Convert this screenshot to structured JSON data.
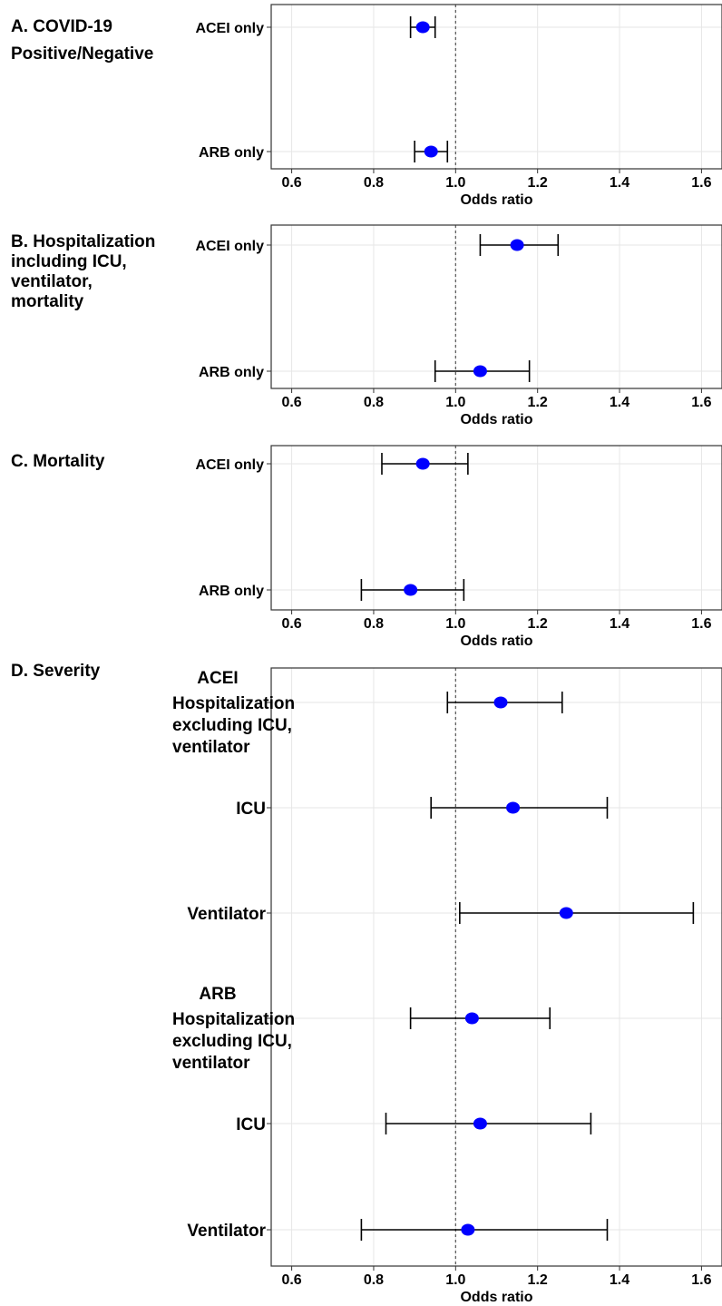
{
  "chart_data": [
    {
      "type": "scatter",
      "subtype": "forest-plot",
      "panel_title": [
        "A. COVID-19",
        "Positive/Negative"
      ],
      "xlabel": "Odds ratio",
      "xlim": [
        0.55,
        1.65
      ],
      "xticks": [
        0.6,
        0.8,
        1.0,
        1.2,
        1.4,
        1.6
      ],
      "xtick_labels": [
        "0.6",
        "0.8",
        "1.0",
        "1.2",
        "1.4",
        "1.6"
      ],
      "reference_line": 1.0,
      "rows": [
        {
          "label": [
            "ACEI only"
          ],
          "estimate": 0.92,
          "lower": 0.89,
          "upper": 0.95
        },
        {
          "label": [
            "ARB only"
          ],
          "estimate": 0.94,
          "lower": 0.9,
          "upper": 0.98
        }
      ]
    },
    {
      "type": "scatter",
      "subtype": "forest-plot",
      "panel_title": [
        "B. Hospitalization",
        "including ICU,",
        "ventilator,",
        "mortality"
      ],
      "xlabel": "Odds ratio",
      "xlim": [
        0.55,
        1.65
      ],
      "xticks": [
        0.6,
        0.8,
        1.0,
        1.2,
        1.4,
        1.6
      ],
      "xtick_labels": [
        "0.6",
        "0.8",
        "1.0",
        "1.2",
        "1.4",
        "1.6"
      ],
      "reference_line": 1.0,
      "rows": [
        {
          "label": [
            "ACEI only"
          ],
          "estimate": 1.15,
          "lower": 1.06,
          "upper": 1.25
        },
        {
          "label": [
            "ARB only"
          ],
          "estimate": 1.06,
          "lower": 0.95,
          "upper": 1.18
        }
      ]
    },
    {
      "type": "scatter",
      "subtype": "forest-plot",
      "panel_title": [
        "C. Mortality"
      ],
      "xlabel": "Odds ratio",
      "xlim": [
        0.55,
        1.65
      ],
      "xticks": [
        0.6,
        0.8,
        1.0,
        1.2,
        1.4,
        1.6
      ],
      "xtick_labels": [
        "0.6",
        "0.8",
        "1.0",
        "1.2",
        "1.4",
        "1.6"
      ],
      "reference_line": 1.0,
      "rows": [
        {
          "label": [
            "ACEI only"
          ],
          "estimate": 0.92,
          "lower": 0.82,
          "upper": 1.03
        },
        {
          "label": [
            "ARB only"
          ],
          "estimate": 0.89,
          "lower": 0.77,
          "upper": 1.02
        }
      ]
    },
    {
      "type": "scatter",
      "subtype": "forest-plot",
      "panel_title": [
        "D. Severity"
      ],
      "xlabel": "Odds ratio",
      "xlim": [
        0.55,
        1.65
      ],
      "xticks": [
        0.6,
        0.8,
        1.0,
        1.2,
        1.4,
        1.6
      ],
      "xtick_labels": [
        "0.6",
        "0.8",
        "1.0",
        "1.2",
        "1.4",
        "1.6"
      ],
      "reference_line": 1.0,
      "rows": [
        {
          "label": [
            "ACEI",
            "Hospitalization",
            "excluding ICU,",
            "ventilator"
          ],
          "estimate": 1.11,
          "lower": 0.98,
          "upper": 1.26
        },
        {
          "label": [
            "ICU"
          ],
          "estimate": 1.14,
          "lower": 0.94,
          "upper": 1.37
        },
        {
          "label": [
            "Ventilator"
          ],
          "estimate": 1.27,
          "lower": 1.01,
          "upper": 1.58
        },
        {
          "label": [
            "ARB",
            "Hospitalization",
            "excluding ICU,",
            "ventilator"
          ],
          "estimate": 1.04,
          "lower": 0.89,
          "upper": 1.23
        },
        {
          "label": [
            "ICU"
          ],
          "estimate": 1.06,
          "lower": 0.83,
          "upper": 1.33
        },
        {
          "label": [
            "Ventilator"
          ],
          "estimate": 1.03,
          "lower": 0.77,
          "upper": 1.37
        }
      ]
    }
  ],
  "colors": {
    "point": "#0000ff",
    "errorbar": "#000000",
    "grid": "#e6e6e6",
    "reference": "#555555",
    "border": "#333333"
  }
}
